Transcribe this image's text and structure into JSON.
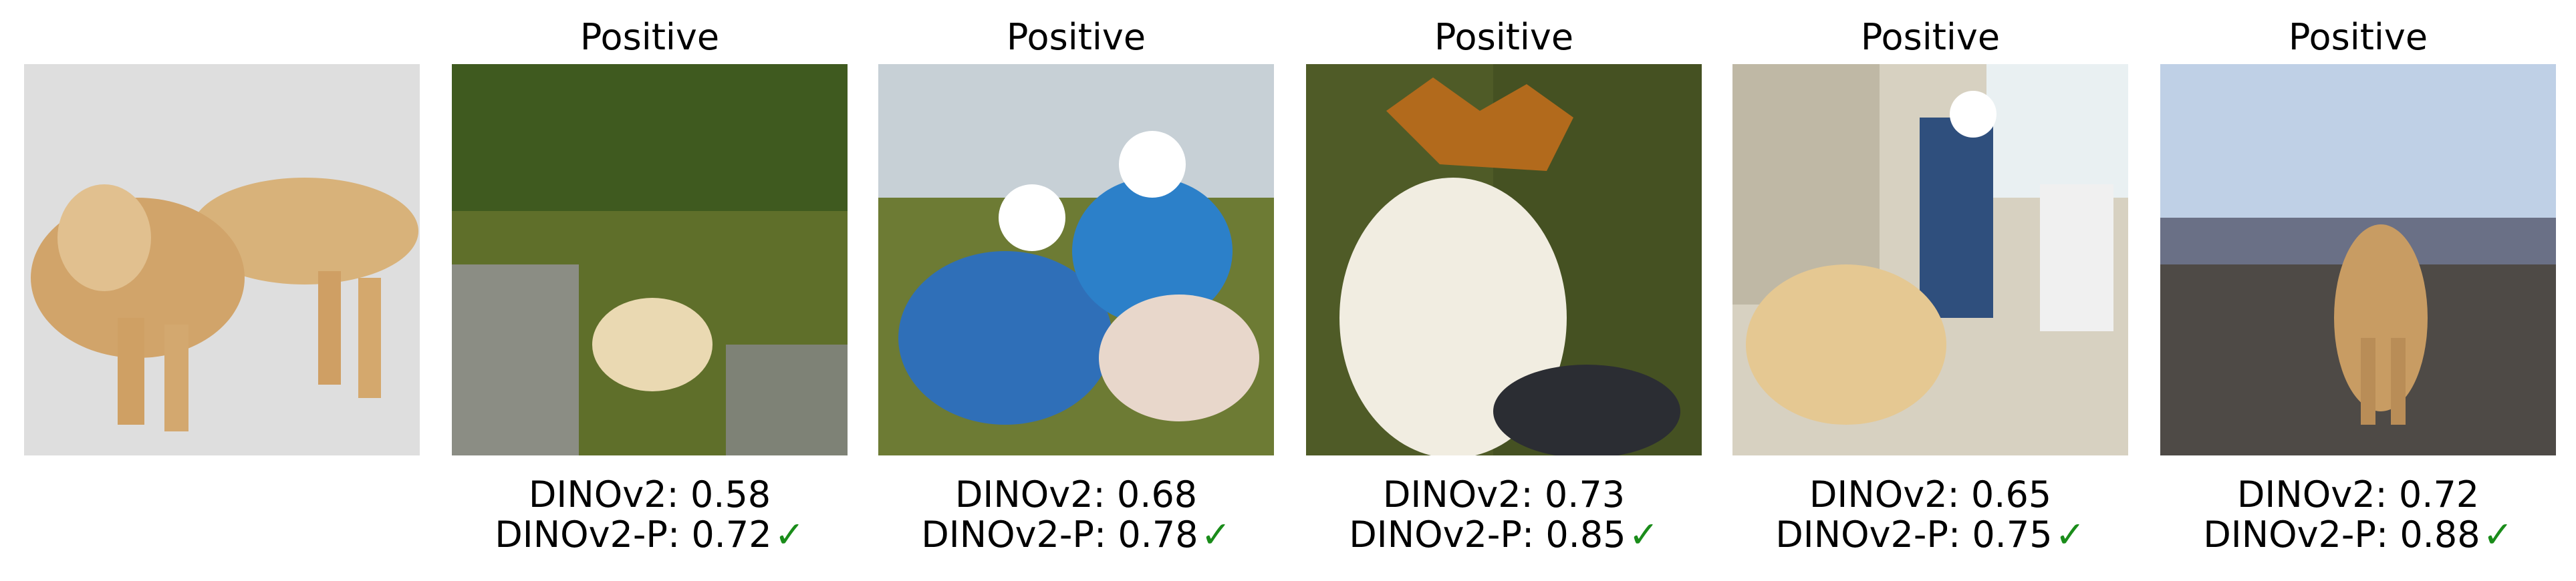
{
  "query": {},
  "panels": [
    {
      "title": "Positive",
      "dino_label": "DINOv2:",
      "dino_value": "0.58",
      "dinop_label": "DINOv2-P:",
      "dinop_value": "0.72",
      "check": "✓"
    },
    {
      "title": "Positive",
      "dino_label": "DINOv2:",
      "dino_value": "0.68",
      "dinop_label": "DINOv2-P:",
      "dinop_value": "0.78",
      "check": "✓"
    },
    {
      "title": "Positive",
      "dino_label": "DINOv2:",
      "dino_value": "0.73",
      "dinop_label": "DINOv2-P:",
      "dinop_value": "0.85",
      "check": "✓"
    },
    {
      "title": "Positive",
      "dino_label": "DINOv2:",
      "dino_value": "0.65",
      "dinop_label": "DINOv2-P:",
      "dinop_value": "0.75",
      "check": "✓"
    },
    {
      "title": "Positive",
      "dino_label": "DINOv2:",
      "dino_value": "0.72",
      "dinop_label": "DINOv2-P:",
      "dinop_value": "0.88",
      "check": "✓"
    }
  ],
  "colors": {
    "check": "#1a8c1a",
    "dog": "#d9b27a",
    "snow": "#cfcfcf",
    "grass": "#6b7a2a",
    "sky": "#c9d3dc"
  }
}
